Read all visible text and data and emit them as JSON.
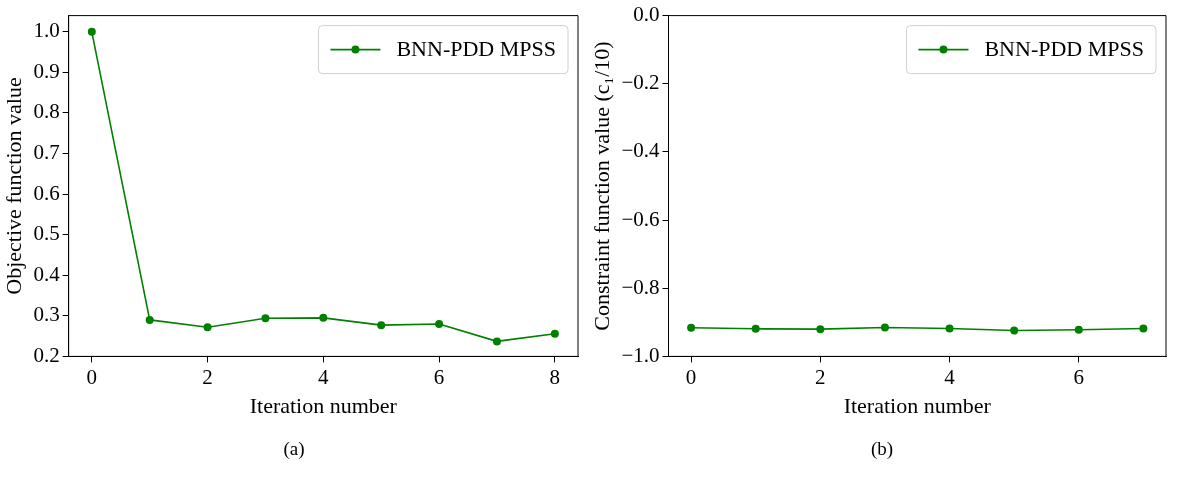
{
  "chart_data": [
    {
      "type": "line",
      "xlabel": "Iteration number",
      "ylabel": "Objective function value",
      "x": [
        0,
        1,
        2,
        3,
        4,
        5,
        6,
        7,
        8
      ],
      "series": [
        {
          "name": "BNN-PDD MPSS",
          "color": "#008000",
          "values": [
            1.0,
            0.29,
            0.272,
            0.294,
            0.295,
            0.277,
            0.28,
            0.237,
            0.256
          ]
        }
      ],
      "xlim": [
        -0.4,
        8.4
      ],
      "xticks": [
        0,
        2,
        4,
        6,
        8
      ],
      "ylim": [
        0.2,
        1.04
      ],
      "yticks": [
        {
          "value": 0.2,
          "label": "0.2"
        },
        {
          "value": 0.3,
          "label": "0.3"
        },
        {
          "value": 0.4,
          "label": "0.4"
        },
        {
          "value": 0.5,
          "label": "0.5"
        },
        {
          "value": 0.6,
          "label": "0.6"
        },
        {
          "value": 0.7,
          "label": "0.7"
        },
        {
          "value": 0.8,
          "label": "0.8"
        },
        {
          "value": 0.9,
          "label": "0.9"
        },
        {
          "value": 1.0,
          "label": "1.0"
        }
      ],
      "legend": "top right",
      "marker": "circle",
      "grid": false,
      "annotations": [
        "(a)"
      ]
    },
    {
      "type": "line",
      "xlabel": "Iteration number",
      "ylabel": "Constraint function value (c₁/10)",
      "x": [
        0,
        1,
        2,
        3,
        4,
        5,
        6,
        7
      ],
      "series": [
        {
          "name": "BNN-PDD MPSS",
          "color": "#008000",
          "values": [
            -0.916,
            -0.919,
            -0.92,
            -0.915,
            -0.918,
            -0.924,
            -0.922,
            -0.918
          ]
        }
      ],
      "xlim": [
        -0.35,
        7.35
      ],
      "xticks": [
        0,
        2,
        4,
        6
      ],
      "ylim": [
        -1.0,
        0.0
      ],
      "yticks": [
        {
          "value": -1.0,
          "label": "−1.0"
        },
        {
          "value": -0.8,
          "label": "−0.8"
        },
        {
          "value": -0.6,
          "label": "−0.6"
        },
        {
          "value": -0.4,
          "label": "−0.4"
        },
        {
          "value": -0.2,
          "label": "−0.2"
        },
        {
          "value": 0.0,
          "label": "0.0"
        }
      ],
      "legend": "top right",
      "marker": "circle",
      "grid": false,
      "annotations": [
        "(b)"
      ]
    }
  ]
}
